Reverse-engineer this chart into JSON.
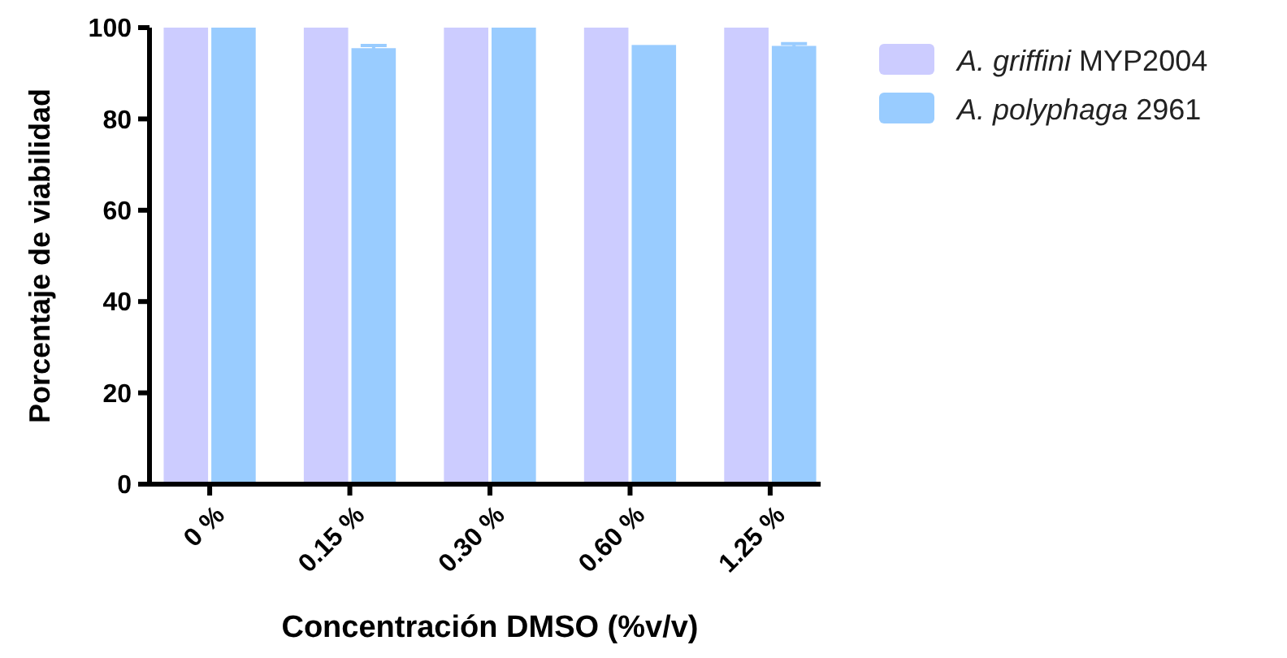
{
  "chart_data": {
    "type": "bar",
    "xlabel": "Concentración DMSO (%v/v)",
    "ylabel": "Porcentaje de viabilidad",
    "categories": [
      "0 %",
      "0.15 %",
      "0.30 %",
      "0.60 %",
      "1.25 %"
    ],
    "series": [
      {
        "name": "A. griffini MYP2004",
        "color": "#ccccff",
        "values": [
          100,
          100,
          100,
          100,
          100
        ]
      },
      {
        "name": "A. polyphaga 2961",
        "color": "#99ccff",
        "values": [
          100,
          95.5,
          100,
          96.2,
          96
        ],
        "errors": [
          null,
          0.6,
          null,
          null,
          0.5
        ]
      }
    ],
    "ylim": [
      0,
      100
    ],
    "yticks": [
      0,
      20,
      40,
      60,
      80,
      100
    ],
    "grid": false,
    "legend": "right"
  }
}
